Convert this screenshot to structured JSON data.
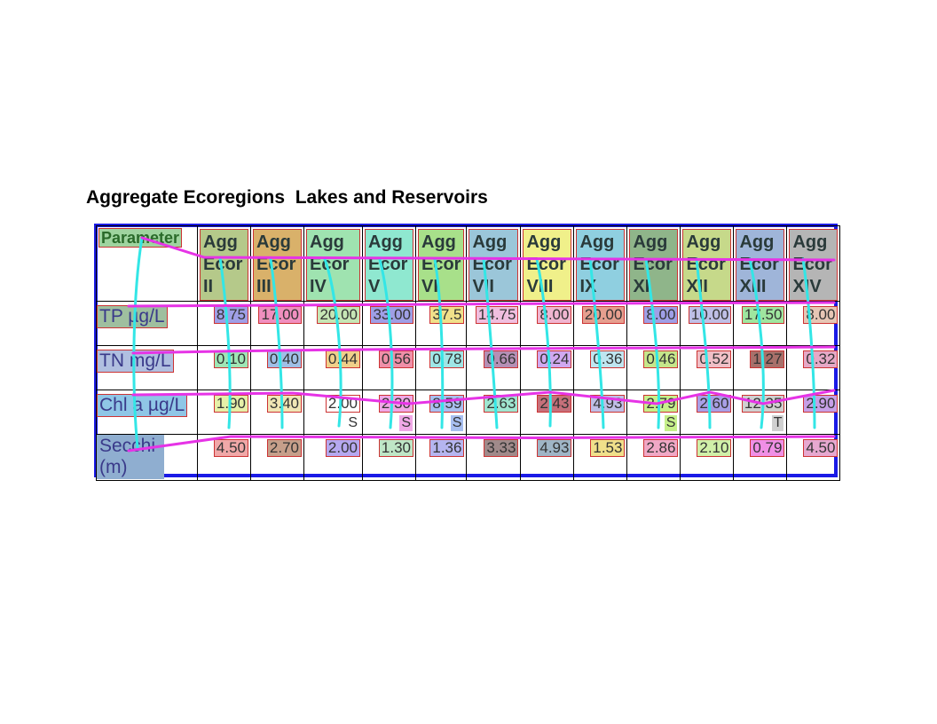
{
  "title": "Aggregate Ecoregions  Lakes and Reservoirs",
  "table": {
    "columns": [
      "Parameter",
      "Agg Ecor II",
      "Agg Ecor III",
      "Agg Ecor IV",
      "Agg Ecor V",
      "Agg Ecor VI",
      "Agg Ecor VII",
      "Agg Ecor VIII",
      "Agg Ecor IX",
      "Agg Ecor XI",
      "Agg Ecor XII",
      "Agg Ecor XIII",
      "Agg Ecor XIV"
    ],
    "header_lines": [
      [
        "Parameter"
      ],
      [
        "Agg",
        "Ecor",
        "II"
      ],
      [
        "Agg",
        "Ecor",
        "III"
      ],
      [
        "Agg",
        "Ecor",
        "IV"
      ],
      [
        "Agg",
        "Ecor",
        "V"
      ],
      [
        "Agg",
        "Ecor",
        "VI"
      ],
      [
        "Agg",
        "Ecor",
        "VII"
      ],
      [
        "Agg",
        "Ecor",
        "VIII"
      ],
      [
        "Agg",
        "Ecor",
        "IX"
      ],
      [
        "Agg",
        "Ecor",
        "XI"
      ],
      [
        "Agg",
        "Ecor",
        "XII"
      ],
      [
        "Agg",
        "Ecor",
        "XIII"
      ],
      [
        "Agg",
        "Ecor",
        "XIV"
      ]
    ],
    "rows": [
      {
        "label": "TP µg/L",
        "values": [
          "8.75",
          "17.00",
          "20.00",
          "33.00",
          "37.5",
          "14.75",
          "8.00",
          "20.00",
          "8.00",
          "10.00",
          "17.50",
          "8.00"
        ]
      },
      {
        "label": "TN mg/L",
        "values": [
          "0.10",
          "0.40",
          "0.44",
          "0.56",
          "0.78",
          "0.66",
          "0.24",
          "0.36",
          "0.46",
          "0.52",
          "1.27",
          "0.32"
        ]
      },
      {
        "label": "Chl a µg/L",
        "values": [
          "1.90",
          "3.40",
          "2.00",
          "2.30",
          "8.59",
          "2.63",
          "2.43",
          "4.93",
          "2.79",
          "2.60",
          "12.35",
          "2.90"
        ],
        "notes": [
          "",
          "",
          "S",
          "S",
          "S",
          "",
          "",
          "",
          "S",
          "",
          "T",
          ""
        ]
      },
      {
        "label": "Secchi (m)",
        "values": [
          "4.50",
          "2.70",
          "2.00",
          "1.30",
          "1.36",
          "3.33",
          "4.93",
          "1.53",
          "2.86",
          "2.10",
          "0.79",
          "4.50"
        ]
      }
    ]
  },
  "colors": {
    "border": "#1a1ae6",
    "overlay_cyan": "#33e6e6",
    "overlay_magenta": "#e633e6",
    "header_fills": [
      "#9fd49f",
      "#b5c98a",
      "#d9b16a",
      "#9fe3b0",
      "#8fe8d0",
      "#a8e08a",
      "#9bc6d9",
      "#f0f08a",
      "#8fcfe0",
      "#8fb58a",
      "#c6d98a",
      "#9fb5d9",
      "#b5b5b5"
    ],
    "label_fills": [
      "#9fbf9f",
      "#b0bfe0",
      "#8fc6e6",
      "#8faed0"
    ],
    "value_fills": [
      [
        "#9f9fe6",
        "#f08fbf",
        "#c6e6b5",
        "#9f9fe6",
        "#f0e08a",
        "#f0bfdf",
        "#f0b5d0",
        "#e69f8f",
        "#9f9fe6",
        "#bfbfe6",
        "#9fe69f",
        "#e6c6b5"
      ],
      [
        "#9fe6b5",
        "#9fbfe6",
        "#f0d08a",
        "#f08fa8",
        "#9fe6e6",
        "#b58fb5",
        "#d0a8f0",
        "#bfe6f0",
        "#c6e68a",
        "#f0bfc6",
        "#a8706a",
        "#e6a8c6"
      ],
      [
        "#e6f0a8",
        "#f0e6b5",
        "#ffffff",
        "#f0a8e6",
        "#a8bff0",
        "#9fe6d0",
        "#c6707a",
        "#bfbfe6",
        "#c6f08a",
        "#a89fe6",
        "#d0d0d0",
        "#c69fe6"
      ],
      [
        "#f0a8a8",
        "#c69f8a",
        "#b5a8f0",
        "#bfe6c6",
        "#b5b5f0",
        "#a08a8a",
        "#9fb5c6",
        "#f0e08a",
        "#f0a8c6",
        "#d0f0a8",
        "#f08fe6",
        "#e6a8d0"
      ]
    ]
  }
}
